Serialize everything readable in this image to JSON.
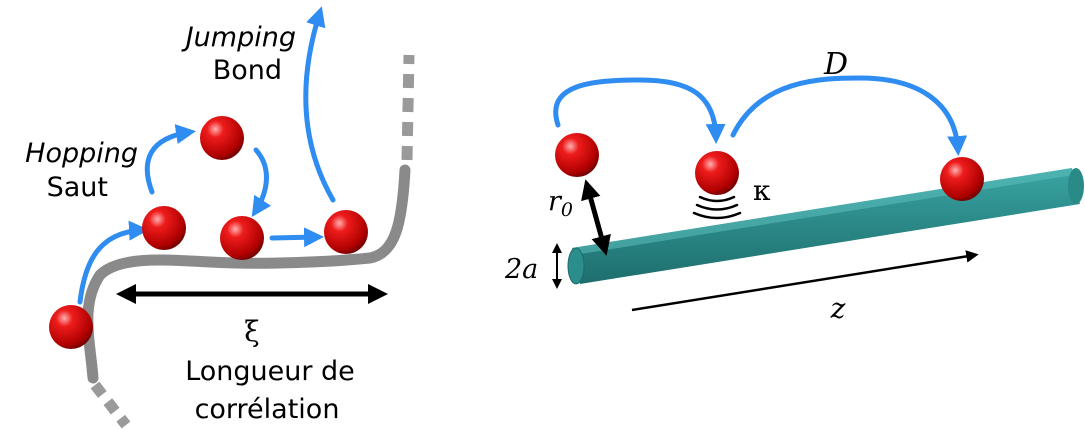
{
  "left_panel": {
    "hopping": {
      "label_en": "Hopping",
      "label_fr": "Saut"
    },
    "jumping": {
      "label_en": "Jumping",
      "label_fr": "Bond"
    },
    "correlation_length": {
      "symbol": "ξ",
      "label_line1": "Longueur de",
      "label_line2": "corrélation"
    }
  },
  "right_panel": {
    "diffusion_symbol": "D",
    "radius_symbol": "r",
    "radius_subscript": "0",
    "diameter_label": "2a",
    "rate_symbol": "κ",
    "axis_symbol": "z"
  },
  "colors": {
    "particle": "#d40000",
    "arrow": "#2f8cf0",
    "chain": "#8a8a8a",
    "rod": "#2a8c8a",
    "dimension_arrow": "#000000"
  }
}
